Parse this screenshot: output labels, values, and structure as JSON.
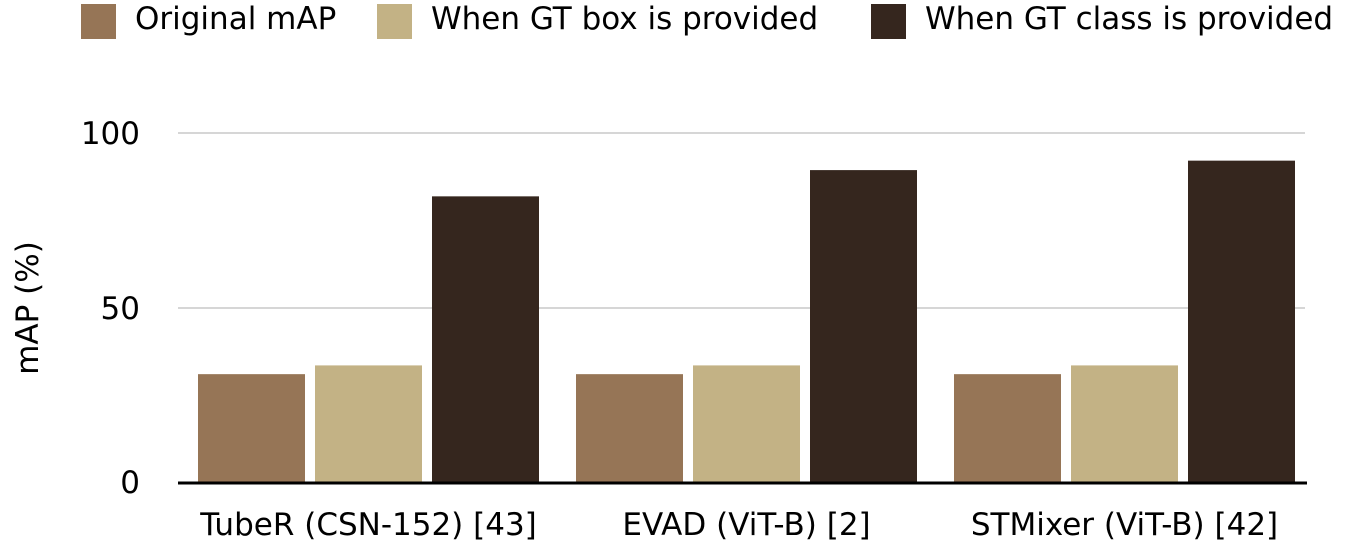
{
  "chart_data": {
    "type": "bar",
    "categories": [
      "TubeR (CSN-152) [43]",
      "EVAD (ViT-B) [2]",
      "STMixer (ViT-B) [42]"
    ],
    "series": [
      {
        "name": "Original mAP",
        "values": [
          31.1,
          31.1,
          31.1
        ],
        "color": "#967556"
      },
      {
        "name": "When GT box is provided",
        "values": [
          33.6,
          33.6,
          33.6
        ],
        "color": "#c3b285"
      },
      {
        "name": "When GT class is provided",
        "values": [
          81.9,
          89.4,
          92.1
        ],
        "color": "#35261e"
      }
    ],
    "title": "",
    "xlabel": "",
    "ylabel": "mAP (%)",
    "ylim": [
      0,
      100
    ],
    "yticks": [
      0,
      50,
      100
    ],
    "grid": true,
    "legend_position": "top"
  }
}
